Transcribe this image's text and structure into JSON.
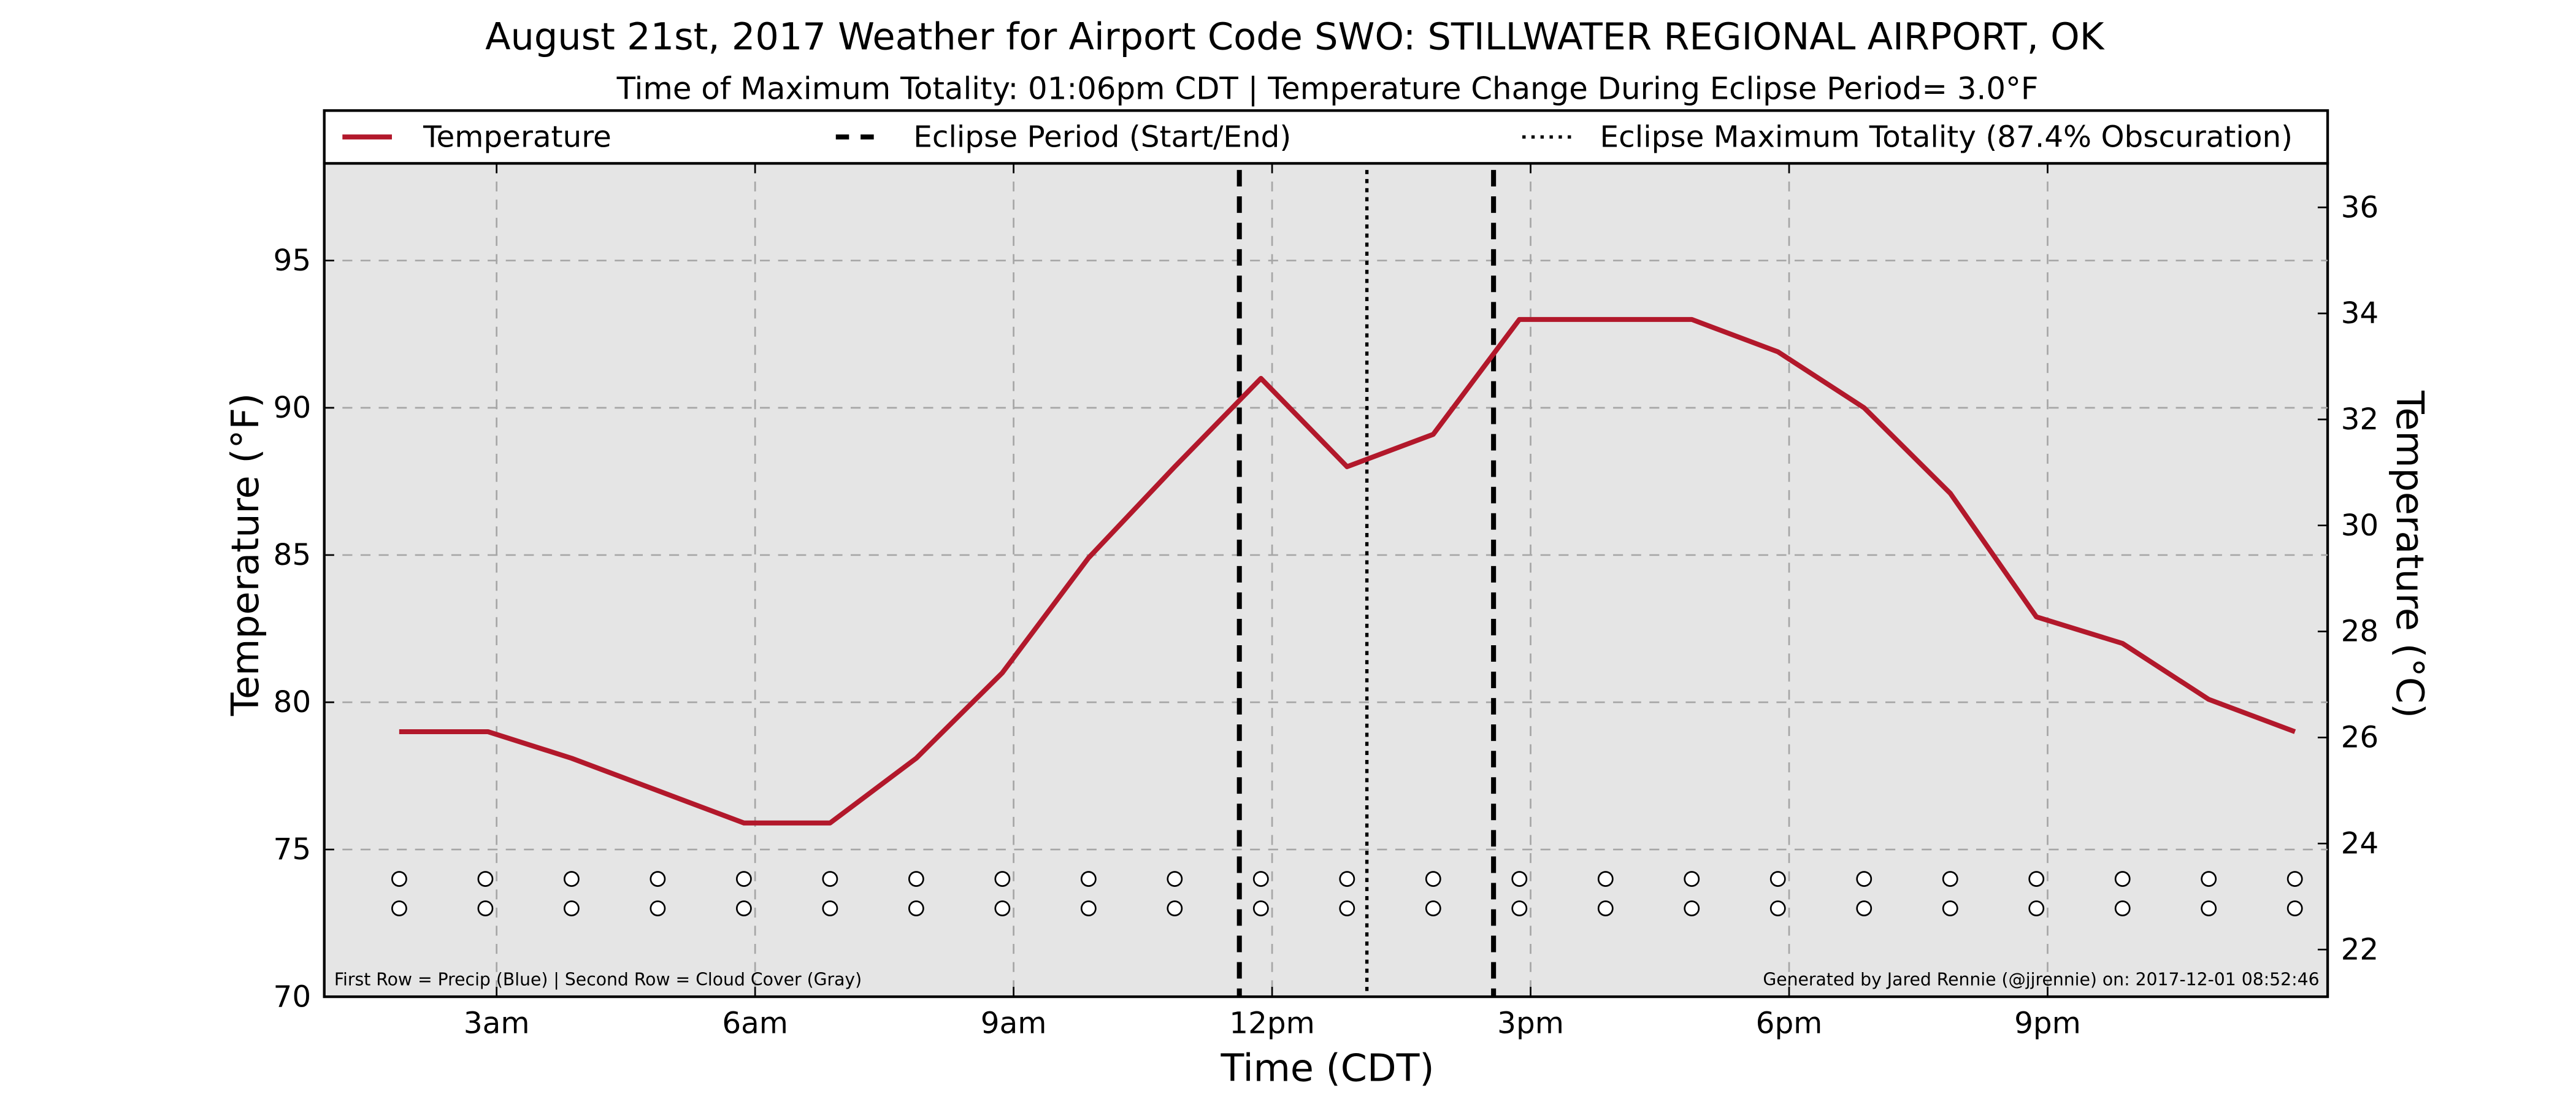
{
  "chart_data": {
    "type": "line",
    "title": "August 21st, 2017 Weather for Airport Code SWO: STILLWATER REGIONAL AIRPORT, OK",
    "subtitle": "Time of Maximum Totality: 01:06pm CDT | Temperature Change During Eclipse Period= 3.0$^\\circ$F",
    "subtitle_display": "Time of Maximum Totality: 01:06pm CDT | Temperature Change During Eclipse Period= 3.0°F",
    "xlabel": "Time (CDT)",
    "ylabel": "Temperature ($^\\circ$F)",
    "ylabel_display": "Temperature (°F)",
    "ylabel_right": "Temperature ($^\\circ$C)",
    "ylabel_right_display": "Temperature (°C)",
    "xlim": [
      1.0,
      24.25
    ],
    "ylim": [
      70,
      98.3
    ],
    "ylim_right": [
      21.11,
      36.83
    ],
    "x_ticks": [
      {
        "x": 3,
        "label": "3am"
      },
      {
        "x": 6,
        "label": "6am"
      },
      {
        "x": 9,
        "label": "9am"
      },
      {
        "x": 12,
        "label": "12pm"
      },
      {
        "x": 15,
        "label": "3pm"
      },
      {
        "x": 18,
        "label": "6pm"
      },
      {
        "x": 21,
        "label": "9pm"
      }
    ],
    "y_ticks": [
      70,
      75,
      80,
      85,
      90,
      95
    ],
    "y_ticks_right": [
      22,
      24,
      26,
      28,
      30,
      32,
      34,
      36
    ],
    "grid": true,
    "legend_position": "top",
    "legend": [
      {
        "label": "Temperature",
        "style": "solid",
        "color": "#b2182b"
      },
      {
        "label": "Eclipse Period (Start/End)",
        "style": "dashed",
        "color": "#000000"
      },
      {
        "label": "Eclipse Maximum Totality (87.4% Obscuration)",
        "style": "dotted",
        "color": "#000000"
      }
    ],
    "series": [
      {
        "name": "Temperature",
        "color": "#b2182b",
        "x": [
          1.87,
          2.9,
          3.87,
          4.87,
          5.87,
          6.87,
          7.87,
          8.87,
          9.87,
          10.87,
          11.87,
          12.87,
          13.87,
          14.87,
          15.87,
          16.87,
          17.87,
          18.87,
          19.87,
          20.87,
          21.87,
          22.87,
          23.87
        ],
        "y": [
          79,
          79,
          78.1,
          77,
          75.9,
          75.9,
          78.1,
          81,
          84.9,
          88,
          91,
          88,
          89.1,
          93,
          93,
          93,
          91.9,
          90,
          87.1,
          82.9,
          82,
          80.1,
          79
        ]
      }
    ],
    "eclipse_start": 11.62,
    "eclipse_max": 13.1,
    "eclipse_end": 14.57,
    "marker_rows": {
      "x": [
        1.87,
        2.87,
        3.87,
        4.87,
        5.87,
        6.87,
        7.87,
        8.87,
        9.87,
        10.87,
        11.87,
        12.87,
        13.87,
        14.87,
        15.87,
        16.87,
        17.87,
        18.87,
        19.87,
        20.87,
        21.87,
        22.87,
        23.87
      ],
      "precip_y": 74,
      "cloud_y": 73
    },
    "annotation_left": "First Row = Precip (Blue) | Second Row = Cloud Cover (Gray)",
    "annotation_right": "Generated by Jared Rennie (@jjrennie) on: 2017-12-01 08:52:46"
  }
}
